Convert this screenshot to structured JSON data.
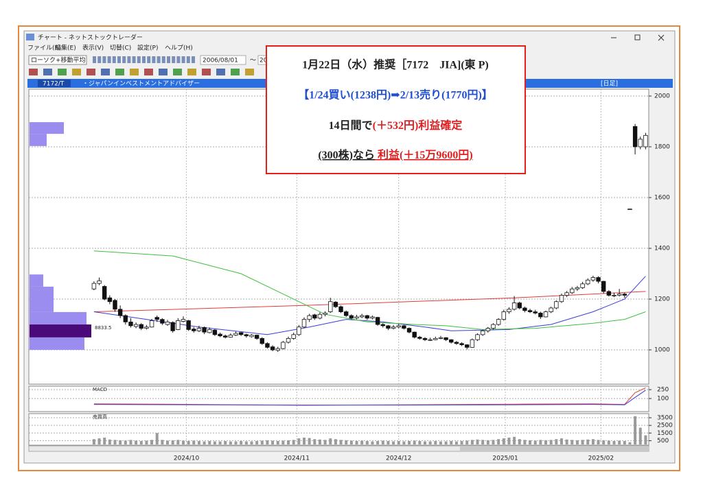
{
  "window": {
    "title": "チャート - ネットストックトレーダー",
    "menu": [
      "ファイル(F)",
      "編集(E)",
      "表示(V)",
      "切替(C)",
      "設定(P)",
      "ヘルプ(H)"
    ],
    "mode": "ローソク+移動平均",
    "date_from": "2006/08/01",
    "range_sep": "～",
    "date_to": "20"
  },
  "header": {
    "code": "7172/T",
    "name": "・ジャパンインベストメントアドバイザー",
    "period": "[日足]"
  },
  "note": {
    "line1": "1月22日（水）推奨［7172　JIA](東 P)",
    "line2": "【1/24買い(1238円)➡2/13売り(1770円)】",
    "line3": {
      "text": "14日間で",
      "highlight": "(＋532円)利益確定"
    },
    "line4": {
      "text": "(300株)なら",
      "highlight": " 利益(＋15万9600円)"
    }
  },
  "chart_data": [
    {
      "type": "candlestick",
      "annotation": "8833.5",
      "xlim": [
        -12.4,
        105.6
      ],
      "ylim": [
        865,
        2027
      ],
      "yticks": [
        1000,
        1200,
        1400,
        1600,
        1800,
        2000
      ],
      "xticks": [
        {
          "value": 17.6,
          "label": "2024/10"
        },
        {
          "value": 38.6,
          "label": "2024/11"
        },
        {
          "value": 58,
          "label": "2024/12"
        },
        {
          "value": 78.3,
          "label": "2025/01"
        },
        {
          "value": 96.5,
          "label": "2025/02"
        }
      ],
      "up_color": "#ffffff",
      "down_color": "#111111",
      "ohlc": [
        [
          1240,
          1270,
          1235,
          1262
        ],
        [
          1262,
          1285,
          1255,
          1272
        ],
        [
          1250,
          1255,
          1195,
          1200
        ],
        [
          1205,
          1215,
          1180,
          1190
        ],
        [
          1195,
          1200,
          1150,
          1160
        ],
        [
          1160,
          1175,
          1125,
          1135
        ],
        [
          1135,
          1140,
          1100,
          1110
        ],
        [
          1110,
          1125,
          1088,
          1095
        ],
        [
          1092,
          1108,
          1085,
          1100
        ],
        [
          1100,
          1105,
          1078,
          1085
        ],
        [
          1085,
          1098,
          1080,
          1090
        ],
        [
          1090,
          1122,
          1088,
          1115
        ],
        [
          1128,
          1135,
          1110,
          1120
        ],
        [
          1120,
          1125,
          1098,
          1105
        ],
        [
          1100,
          1118,
          1095,
          1110
        ],
        [
          1108,
          1112,
          1068,
          1075
        ],
        [
          1080,
          1125,
          1078,
          1115
        ],
        [
          1112,
          1132,
          1108,
          1120
        ],
        [
          1115,
          1118,
          1075,
          1080
        ],
        [
          1082,
          1090,
          1068,
          1075
        ],
        [
          1075,
          1095,
          1070,
          1085
        ],
        [
          1088,
          1092,
          1062,
          1070
        ],
        [
          1068,
          1088,
          1065,
          1080
        ],
        [
          1078,
          1082,
          1055,
          1060
        ],
        [
          1062,
          1068,
          1050,
          1055
        ],
        [
          1055,
          1060,
          1045,
          1050
        ],
        [
          1050,
          1065,
          1048,
          1058
        ],
        [
          1058,
          1072,
          1055,
          1065
        ],
        [
          1068,
          1070,
          1055,
          1060
        ],
        [
          1060,
          1064,
          1048,
          1055
        ],
        [
          1052,
          1062,
          1048,
          1058
        ],
        [
          1058,
          1060,
          1040,
          1045
        ],
        [
          1045,
          1050,
          1020,
          1025
        ],
        [
          1025,
          1030,
          1005,
          1010
        ],
        [
          1012,
          1018,
          995,
          1000
        ],
        [
          998,
          1012,
          992,
          1005
        ],
        [
          1005,
          1035,
          1002,
          1030
        ],
        [
          1030,
          1052,
          1025,
          1045
        ],
        [
          1045,
          1068,
          1040,
          1060
        ],
        [
          1060,
          1098,
          1055,
          1090
        ],
        [
          1090,
          1128,
          1085,
          1120
        ],
        [
          1120,
          1142,
          1110,
          1135
        ],
        [
          1138,
          1142,
          1118,
          1125
        ],
        [
          1125,
          1148,
          1120,
          1140
        ],
        [
          1140,
          1152,
          1132,
          1145
        ],
        [
          1150,
          1205,
          1145,
          1190
        ],
        [
          1188,
          1192,
          1165,
          1170
        ],
        [
          1170,
          1175,
          1145,
          1150
        ],
        [
          1150,
          1155,
          1130,
          1135
        ],
        [
          1135,
          1140,
          1120,
          1125
        ],
        [
          1125,
          1138,
          1120,
          1130
        ],
        [
          1130,
          1142,
          1125,
          1135
        ],
        [
          1135,
          1138,
          1118,
          1125
        ],
        [
          1125,
          1135,
          1120,
          1130
        ],
        [
          1128,
          1130,
          1095,
          1100
        ],
        [
          1100,
          1105,
          1088,
          1095
        ],
        [
          1095,
          1098,
          1078,
          1085
        ],
        [
          1085,
          1098,
          1080,
          1090
        ],
        [
          1090,
          1102,
          1085,
          1095
        ],
        [
          1095,
          1098,
          1080,
          1085
        ],
        [
          1085,
          1088,
          1065,
          1070
        ],
        [
          1070,
          1072,
          1045,
          1050
        ],
        [
          1050,
          1055,
          1040,
          1045
        ],
        [
          1045,
          1050,
          1035,
          1040
        ],
        [
          1038,
          1048,
          1035,
          1040
        ],
        [
          1040,
          1052,
          1038,
          1045
        ],
        [
          1045,
          1055,
          1042,
          1048
        ],
        [
          1048,
          1050,
          1035,
          1040
        ],
        [
          1040,
          1042,
          1025,
          1030
        ],
        [
          1030,
          1035,
          1020,
          1025
        ],
        [
          1025,
          1030,
          1015,
          1020
        ],
        [
          1020,
          1022,
          1002,
          1010
        ],
        [
          1010,
          1045,
          1008,
          1040
        ],
        [
          1040,
          1065,
          1035,
          1060
        ],
        [
          1060,
          1080,
          1055,
          1075
        ],
        [
          1075,
          1090,
          1068,
          1085
        ],
        [
          1085,
          1105,
          1080,
          1100
        ],
        [
          1100,
          1125,
          1095,
          1120
        ],
        [
          1120,
          1158,
          1115,
          1150
        ],
        [
          1150,
          1168,
          1142,
          1160
        ],
        [
          1160,
          1212,
          1155,
          1185
        ],
        [
          1185,
          1190,
          1160,
          1165
        ],
        [
          1165,
          1170,
          1148,
          1155
        ],
        [
          1155,
          1162,
          1145,
          1150
        ],
        [
          1150,
          1158,
          1140,
          1145
        ],
        [
          1145,
          1150,
          1122,
          1130
        ],
        [
          1130,
          1155,
          1128,
          1150
        ],
        [
          1150,
          1170,
          1145,
          1165
        ],
        [
          1165,
          1195,
          1160,
          1190
        ],
        [
          1190,
          1222,
          1185,
          1215
        ],
        [
          1215,
          1232,
          1208,
          1225
        ],
        [
          1225,
          1248,
          1220,
          1240
        ],
        [
          1240,
          1252,
          1232,
          1245
        ],
        [
          1245,
          1268,
          1240,
          1260
        ],
        [
          1260,
          1282,
          1255,
          1275
        ],
        [
          1275,
          1292,
          1268,
          1285
        ],
        [
          1285,
          1290,
          1262,
          1270
        ],
        [
          1270,
          1272,
          1222,
          1230
        ],
        [
          1230,
          1235,
          1210,
          1215
        ],
        [
          1215,
          1225,
          1208,
          1215
        ],
        [
          1215,
          1240,
          1210,
          1220
        ],
        [
          1220,
          1225,
          1205,
          1215
        ],
        [
          1555,
          1555,
          1555,
          1555
        ],
        [
          1880,
          1890,
          1770,
          1800
        ],
        [
          1800,
          1840,
          1790,
          1830
        ],
        [
          1800,
          1855,
          1790,
          1845
        ]
      ],
      "lines": [
        {
          "color": "#e03a3a",
          "x": [
            0,
            40,
            80,
            105
          ],
          "values": [
            1150,
            1175,
            1205,
            1230
          ]
        },
        {
          "color": "#3a3ad8",
          "x": [
            0,
            10,
            20,
            33,
            41,
            48,
            55,
            63,
            68,
            79,
            87,
            95,
            101,
            105
          ],
          "values": [
            1150,
            1120,
            1090,
            1060,
            1090,
            1120,
            1110,
            1090,
            1075,
            1080,
            1100,
            1150,
            1200,
            1290
          ]
        },
        {
          "color": "#3cc03c",
          "x": [
            0,
            15,
            28,
            37,
            44,
            52,
            61,
            67,
            74,
            84,
            95,
            101,
            105
          ],
          "values": [
            1390,
            1370,
            1300,
            1210,
            1140,
            1110,
            1100,
            1095,
            1080,
            1085,
            1105,
            1120,
            1150
          ]
        }
      ],
      "price_volume": {
        "color": "#9b8cf0",
        "peak_color": "#4b0a7a",
        "levels": [
          [
            1851,
            1897
          ],
          [
            1803,
            1851
          ],
          [
            1249,
            1297
          ],
          [
            1200,
            1249
          ],
          [
            1149,
            1200
          ],
          [
            1100,
            1149
          ],
          [
            1049,
            1100
          ],
          [
            1000,
            1049
          ]
        ],
        "values": [
          50,
          25,
          20,
          35,
          35,
          83,
          90,
          80
        ]
      }
    },
    {
      "type": "line",
      "title": "MACD",
      "ylim": [
        -85,
        285
      ],
      "yticks": [
        100,
        250
      ],
      "series": [
        {
          "color": "#e03a3a",
          "x": [
            0,
            20,
            40,
            60,
            80,
            95,
            101,
            103,
            105
          ],
          "values": [
            10,
            0,
            -15,
            -5,
            5,
            10,
            0,
            200,
            280
          ]
        },
        {
          "color": "#3a3ad8",
          "x": [
            0,
            20,
            40,
            60,
            80,
            95,
            101,
            103,
            105
          ],
          "values": [
            0,
            -5,
            -10,
            -10,
            -5,
            0,
            -5,
            120,
            240
          ]
        }
      ]
    },
    {
      "type": "bar",
      "title": "売買高",
      "color": "#9a9a9a",
      "ylim": [
        0,
        3950
      ],
      "yticks": [
        500,
        1500,
        2500,
        3500
      ],
      "values": [
        700,
        800,
        900,
        650,
        600,
        550,
        500,
        600,
        500,
        450,
        500,
        600,
        1500,
        600,
        500,
        550,
        600,
        500,
        450,
        500,
        450,
        400,
        450,
        400,
        400,
        450,
        400,
        400,
        450,
        400,
        400,
        450,
        500,
        550,
        500,
        450,
        500,
        550,
        600,
        800,
        900,
        850,
        700,
        650,
        600,
        800,
        700,
        600,
        550,
        500,
        450,
        500,
        450,
        400,
        450,
        500,
        450,
        400,
        450,
        400,
        450,
        500,
        450,
        400,
        400,
        450,
        400,
        400,
        450,
        400,
        450,
        500,
        600,
        650,
        600,
        550,
        600,
        700,
        800,
        900,
        1000,
        700,
        600,
        550,
        500,
        600,
        550,
        600,
        700,
        800,
        650,
        600,
        550,
        600,
        650,
        700,
        600,
        550,
        500,
        450,
        500,
        450,
        300,
        3700,
        2200,
        1200
      ]
    }
  ]
}
